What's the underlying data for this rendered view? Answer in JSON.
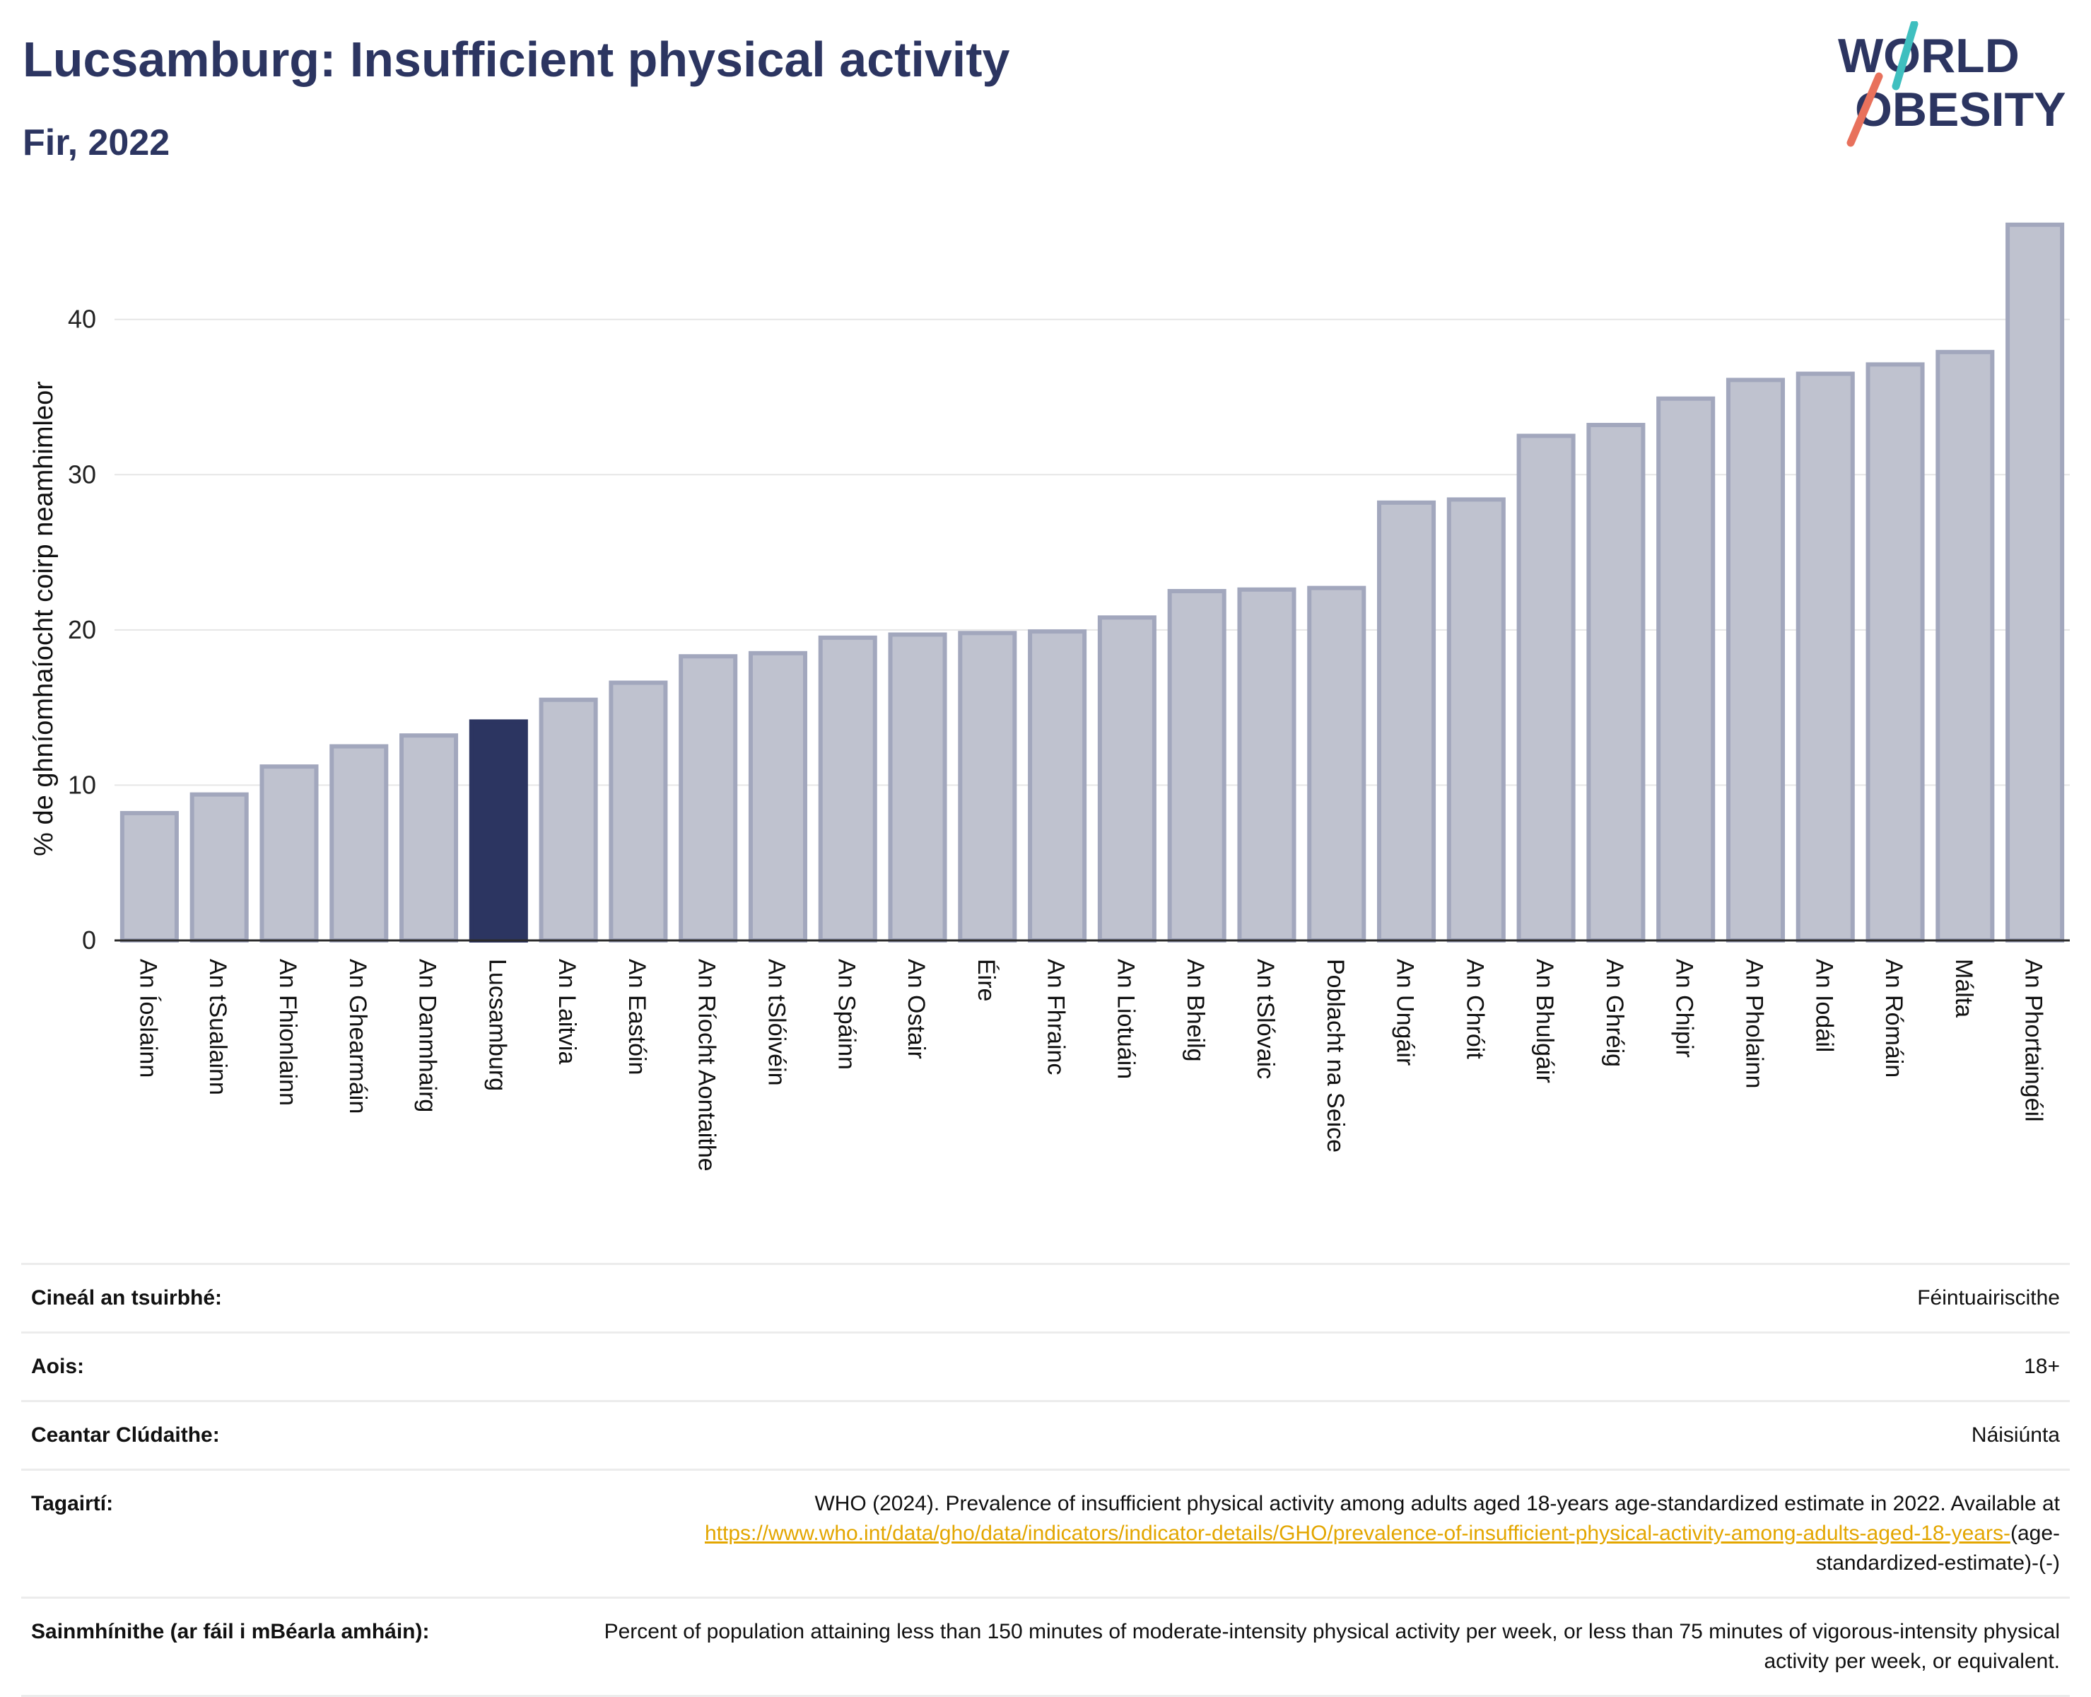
{
  "header": {
    "title": "Lucsamburg: Insufficient physical activity",
    "subtitle": "Fir, 2022"
  },
  "logo": {
    "line1": "WORLD",
    "line2": "OBESITY"
  },
  "colors": {
    "highlight": "#2c3561",
    "bar_fill": "#bfc2cf",
    "bar_stroke": "#a2a7bd",
    "title": "#2c3561",
    "link": "#e3a600",
    "logo_teal": "#3fbfbf",
    "logo_coral": "#e8715c"
  },
  "chart_data": {
    "type": "bar",
    "ylabel": "% de ghníomhaíocht coirp neamhimleor",
    "ylim": [
      0,
      46
    ],
    "yticks": [
      0,
      10,
      20,
      30,
      40
    ],
    "grid": true,
    "highlight": "Lucsamburg",
    "categories": [
      "An Íoslainn",
      "An tSualainn",
      "An Fhionlainn",
      "An Ghearmáin",
      "An Danmhairg",
      "Lucsamburg",
      "An Laitvia",
      "An Eastóin",
      "An Ríocht Aontaithe",
      "An tSlóivéin",
      "An Spáinn",
      "An Ostair",
      "Éire",
      "An Fhrainc",
      "An Liotuáin",
      "An Bheilg",
      "An tSlóvaic",
      "Poblacht na Seice",
      "An Ungáir",
      "An Chróit",
      "An Bhulgáir",
      "An Ghréig",
      "An Chipir",
      "An Pholainn",
      "An Iodáil",
      "An Rómáin",
      "Málta",
      "An Phortaingéil"
    ],
    "values": [
      8.2,
      9.4,
      11.2,
      12.5,
      13.2,
      14.1,
      15.5,
      16.6,
      18.3,
      18.5,
      19.5,
      19.7,
      19.8,
      19.9,
      20.8,
      22.5,
      22.6,
      22.7,
      28.2,
      28.4,
      32.5,
      33.2,
      34.9,
      36.1,
      36.5,
      37.1,
      37.9,
      46.1
    ]
  },
  "meta": {
    "survey_type": {
      "label": "Cineál an tsuirbhé:",
      "value": "Féintuairiscithe"
    },
    "age": {
      "label": "Aois:",
      "value": "18+"
    },
    "coverage": {
      "label": "Ceantar Clúdaithe:",
      "value": "Náisiúnta"
    },
    "references": {
      "label": "Tagairtí:",
      "text": "WHO (2024). Prevalence of insufficient physical activity among adults aged 18-years age-standardized estimate in 2022. Available at",
      "link": "https://www.who.int/data/gho/data/indicators/indicator-details/GHO/prevalence-of-insufficient-physical-activity-among-adults-aged-18-years-",
      "suffix": "(age-standardized-estimate)-(-)"
    },
    "definitions": {
      "label": "Sainmhínithe (ar fáil i mBéarla amháin):",
      "value": "Percent of population attaining less than 150 minutes of moderate-intensity physical activity per week, or less than 75 minutes of vigorous-intensity physical activity per week, or equivalent."
    }
  }
}
